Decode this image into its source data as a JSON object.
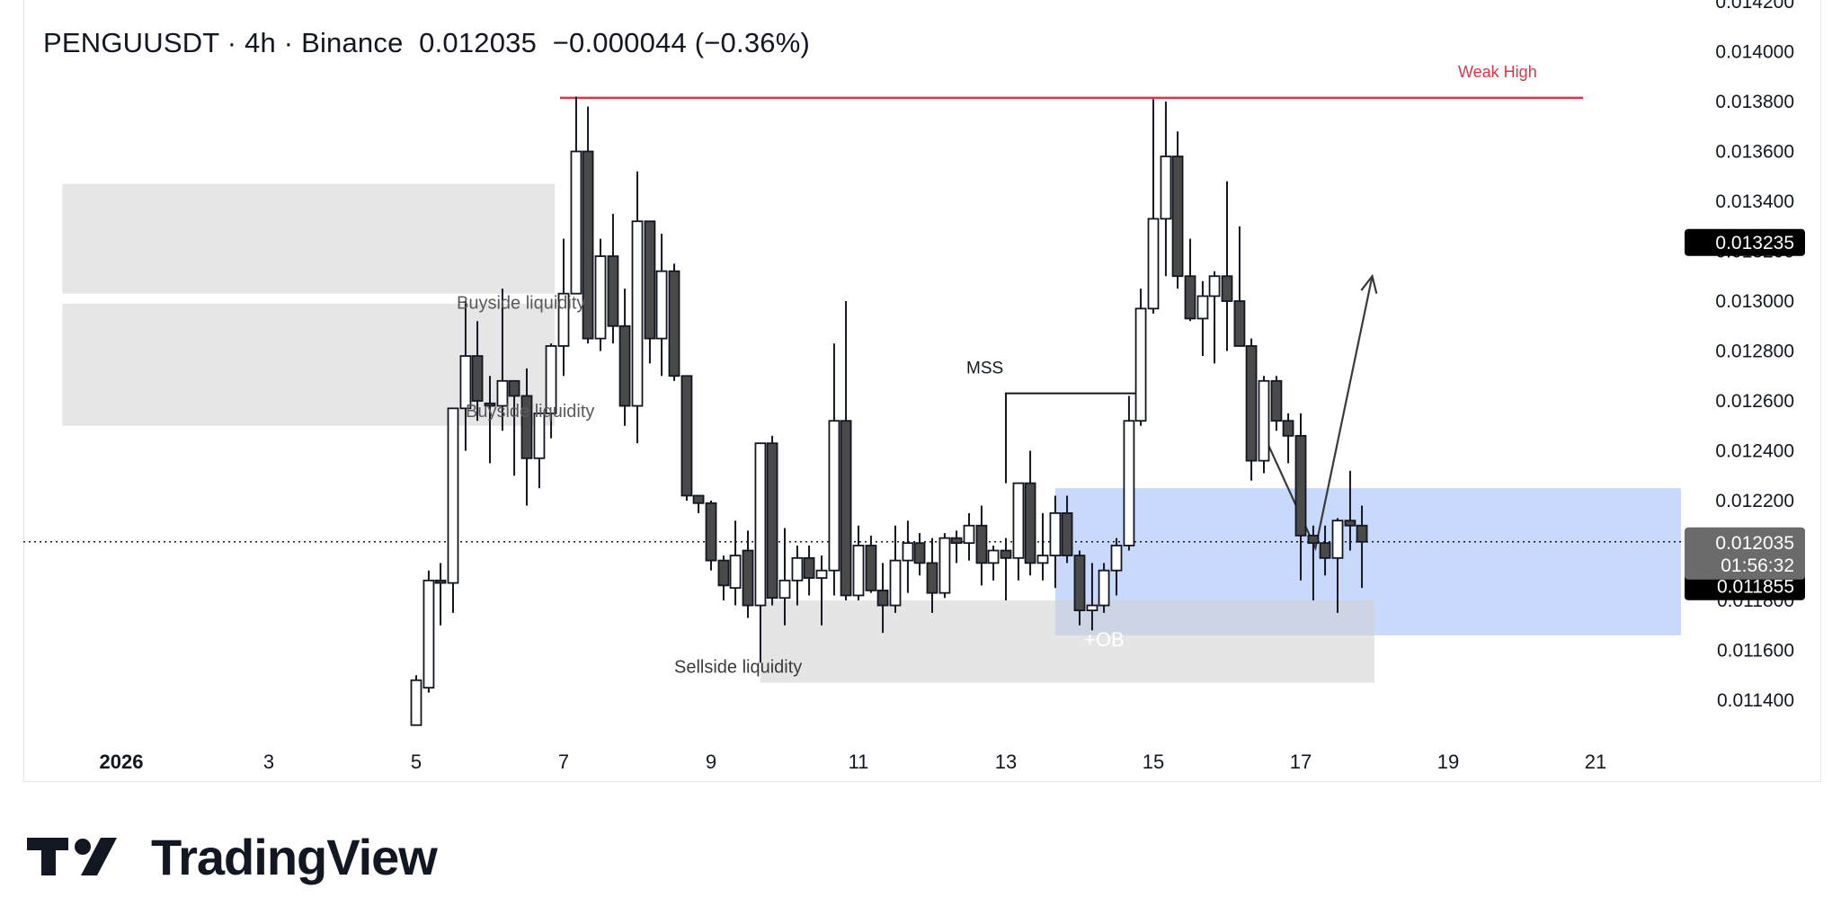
{
  "header": {
    "symbol": "PENGUUSDT",
    "interval": "4h",
    "exchange": "Binance",
    "price": "0.012035",
    "change": "−0.000044",
    "change_pct": "(−0.36%)"
  },
  "branding": {
    "name": "TradingView",
    "logo_icon": "tradingview-logo-icon"
  },
  "chart_data": {
    "type": "candlestick",
    "symbol": "PENGUUSDT",
    "timeframe": "4h",
    "price_axis": {
      "ticks": [
        "0.014200",
        "0.014000",
        "0.013800",
        "0.013600",
        "0.013400",
        "0.013200",
        "0.013000",
        "0.012800",
        "0.012600",
        "0.012400",
        "0.012200",
        "0.012000",
        "0.011800",
        "0.011600",
        "0.011400"
      ],
      "range": [
        0.0113,
        0.01425
      ]
    },
    "time_axis": {
      "labels": [
        {
          "t": 0,
          "text": "2026",
          "bold": true
        },
        {
          "t": 2,
          "text": "3"
        },
        {
          "t": 4,
          "text": "5"
        },
        {
          "t": 6,
          "text": "7"
        },
        {
          "t": 8,
          "text": "9"
        },
        {
          "t": 10,
          "text": "11"
        },
        {
          "t": 12,
          "text": "13"
        },
        {
          "t": 14,
          "text": "15"
        },
        {
          "t": 16,
          "text": "17"
        },
        {
          "t": 18,
          "text": "19"
        },
        {
          "t": 20,
          "text": "21"
        }
      ]
    },
    "price_labels": [
      {
        "price": 0.013235,
        "text": "0.013235",
        "style": "black"
      },
      {
        "price": 0.012035,
        "text": "0.012035",
        "style": "green"
      },
      {
        "price": 0.011855,
        "text": "0.011855",
        "style": "black"
      }
    ],
    "countdown_label": {
      "price": "0.012035",
      "time": "01:56:32"
    },
    "current_price": 0.012035,
    "candles": [
      {
        "t": 4.0,
        "o": 0.0113,
        "h": 0.0115,
        "l": 0.0113,
        "c": 0.01148
      },
      {
        "t": 4.17,
        "o": 0.01145,
        "h": 0.01192,
        "l": 0.01143,
        "c": 0.01188
      },
      {
        "t": 4.33,
        "o": 0.01188,
        "h": 0.01195,
        "l": 0.0117,
        "c": 0.01187
      },
      {
        "t": 4.5,
        "o": 0.01187,
        "h": 0.01257,
        "l": 0.01175,
        "c": 0.01257
      },
      {
        "t": 4.67,
        "o": 0.01257,
        "h": 0.013,
        "l": 0.0124,
        "c": 0.01278
      },
      {
        "t": 4.83,
        "o": 0.01278,
        "h": 0.01292,
        "l": 0.01252,
        "c": 0.0126
      },
      {
        "t": 5.0,
        "o": 0.01259,
        "h": 0.0127,
        "l": 0.01235,
        "c": 0.01258
      },
      {
        "t": 5.17,
        "o": 0.01258,
        "h": 0.01305,
        "l": 0.01248,
        "c": 0.01268
      },
      {
        "t": 5.33,
        "o": 0.01268,
        "h": 0.01268,
        "l": 0.0123,
        "c": 0.01262
      },
      {
        "t": 5.5,
        "o": 0.01262,
        "h": 0.01273,
        "l": 0.01218,
        "c": 0.01237
      },
      {
        "t": 5.67,
        "o": 0.01237,
        "h": 0.01254,
        "l": 0.01225,
        "c": 0.01255
      },
      {
        "t": 5.83,
        "o": 0.01255,
        "h": 0.01283,
        "l": 0.01245,
        "c": 0.01282
      },
      {
        "t": 6.0,
        "o": 0.01282,
        "h": 0.01325,
        "l": 0.0127,
        "c": 0.01303
      },
      {
        "t": 6.17,
        "o": 0.01303,
        "h": 0.01382,
        "l": 0.01303,
        "c": 0.0136
      },
      {
        "t": 6.33,
        "o": 0.0136,
        "h": 0.01378,
        "l": 0.01283,
        "c": 0.01285
      },
      {
        "t": 6.5,
        "o": 0.01285,
        "h": 0.01325,
        "l": 0.0128,
        "c": 0.01318
      },
      {
        "t": 6.67,
        "o": 0.01318,
        "h": 0.01335,
        "l": 0.01283,
        "c": 0.0129
      },
      {
        "t": 6.83,
        "o": 0.0129,
        "h": 0.01305,
        "l": 0.0125,
        "c": 0.01258
      },
      {
        "t": 7.0,
        "o": 0.01258,
        "h": 0.01352,
        "l": 0.01243,
        "c": 0.01332
      },
      {
        "t": 7.17,
        "o": 0.01332,
        "h": 0.01332,
        "l": 0.01275,
        "c": 0.01285
      },
      {
        "t": 7.33,
        "o": 0.01285,
        "h": 0.01327,
        "l": 0.0127,
        "c": 0.01312
      },
      {
        "t": 7.5,
        "o": 0.01312,
        "h": 0.01315,
        "l": 0.01268,
        "c": 0.0127
      },
      {
        "t": 7.67,
        "o": 0.0127,
        "h": 0.0127,
        "l": 0.0122,
        "c": 0.01222
      },
      {
        "t": 7.83,
        "o": 0.01222,
        "h": 0.01222,
        "l": 0.01215,
        "c": 0.01219
      },
      {
        "t": 8.0,
        "o": 0.01219,
        "h": 0.0122,
        "l": 0.01192,
        "c": 0.01196
      },
      {
        "t": 8.17,
        "o": 0.01196,
        "h": 0.01198,
        "l": 0.0118,
        "c": 0.01186
      },
      {
        "t": 8.33,
        "o": 0.01185,
        "h": 0.01212,
        "l": 0.01178,
        "c": 0.01198
      },
      {
        "t": 8.5,
        "o": 0.012,
        "h": 0.01208,
        "l": 0.01173,
        "c": 0.01178
      },
      {
        "t": 8.67,
        "o": 0.01178,
        "h": 0.01243,
        "l": 0.01155,
        "c": 0.01243
      },
      {
        "t": 8.83,
        "o": 0.01243,
        "h": 0.01246,
        "l": 0.01178,
        "c": 0.01181
      },
      {
        "t": 9.0,
        "o": 0.01181,
        "h": 0.01209,
        "l": 0.0117,
        "c": 0.01188
      },
      {
        "t": 9.17,
        "o": 0.01188,
        "h": 0.01202,
        "l": 0.01178,
        "c": 0.01197
      },
      {
        "t": 9.33,
        "o": 0.01197,
        "h": 0.01202,
        "l": 0.01182,
        "c": 0.01189
      },
      {
        "t": 9.5,
        "o": 0.01189,
        "h": 0.01198,
        "l": 0.0117,
        "c": 0.01192
      },
      {
        "t": 9.67,
        "o": 0.01192,
        "h": 0.01283,
        "l": 0.01182,
        "c": 0.01252
      },
      {
        "t": 9.83,
        "o": 0.01252,
        "h": 0.013,
        "l": 0.0118,
        "c": 0.01182
      },
      {
        "t": 10.0,
        "o": 0.01182,
        "h": 0.0121,
        "l": 0.0118,
        "c": 0.01202
      },
      {
        "t": 10.17,
        "o": 0.01202,
        "h": 0.01206,
        "l": 0.01183,
        "c": 0.01184
      },
      {
        "t": 10.33,
        "o": 0.01184,
        "h": 0.01195,
        "l": 0.01167,
        "c": 0.01178
      },
      {
        "t": 10.5,
        "o": 0.01178,
        "h": 0.0121,
        "l": 0.01175,
        "c": 0.01196
      },
      {
        "t": 10.67,
        "o": 0.01196,
        "h": 0.01212,
        "l": 0.01183,
        "c": 0.01203
      },
      {
        "t": 10.83,
        "o": 0.01203,
        "h": 0.01207,
        "l": 0.0119,
        "c": 0.01195
      },
      {
        "t": 11.0,
        "o": 0.01195,
        "h": 0.01205,
        "l": 0.01175,
        "c": 0.01183
      },
      {
        "t": 11.17,
        "o": 0.01183,
        "h": 0.01207,
        "l": 0.01181,
        "c": 0.01205
      },
      {
        "t": 11.33,
        "o": 0.01205,
        "h": 0.01208,
        "l": 0.01195,
        "c": 0.01203
      },
      {
        "t": 11.5,
        "o": 0.01203,
        "h": 0.01215,
        "l": 0.01196,
        "c": 0.0121
      },
      {
        "t": 11.67,
        "o": 0.0121,
        "h": 0.01218,
        "l": 0.01186,
        "c": 0.01195
      },
      {
        "t": 11.83,
        "o": 0.01195,
        "h": 0.01202,
        "l": 0.01188,
        "c": 0.012
      },
      {
        "t": 12.0,
        "o": 0.012,
        "h": 0.01205,
        "l": 0.0118,
        "c": 0.01197
      },
      {
        "t": 12.17,
        "o": 0.01197,
        "h": 0.01227,
        "l": 0.01188,
        "c": 0.01227
      },
      {
        "t": 12.33,
        "o": 0.01227,
        "h": 0.0124,
        "l": 0.0119,
        "c": 0.01195
      },
      {
        "t": 12.5,
        "o": 0.01195,
        "h": 0.01215,
        "l": 0.01188,
        "c": 0.01198
      },
      {
        "t": 12.67,
        "o": 0.01198,
        "h": 0.01222,
        "l": 0.01185,
        "c": 0.01215
      },
      {
        "t": 12.83,
        "o": 0.01215,
        "h": 0.01222,
        "l": 0.01195,
        "c": 0.01198
      },
      {
        "t": 13.0,
        "o": 0.01198,
        "h": 0.012,
        "l": 0.0117,
        "c": 0.01176
      },
      {
        "t": 13.17,
        "o": 0.01176,
        "h": 0.01195,
        "l": 0.01168,
        "c": 0.01178
      },
      {
        "t": 13.33,
        "o": 0.01178,
        "h": 0.01195,
        "l": 0.01175,
        "c": 0.01192
      },
      {
        "t": 13.5,
        "o": 0.01192,
        "h": 0.01205,
        "l": 0.01182,
        "c": 0.01202
      },
      {
        "t": 13.67,
        "o": 0.01202,
        "h": 0.01262,
        "l": 0.012,
        "c": 0.01252
      },
      {
        "t": 13.83,
        "o": 0.01252,
        "h": 0.01305,
        "l": 0.0125,
        "c": 0.01297
      },
      {
        "t": 14.0,
        "o": 0.01297,
        "h": 0.01381,
        "l": 0.01295,
        "c": 0.01333
      },
      {
        "t": 14.17,
        "o": 0.01333,
        "h": 0.0138,
        "l": 0.0131,
        "c": 0.01358
      },
      {
        "t": 14.33,
        "o": 0.01358,
        "h": 0.01368,
        "l": 0.01305,
        "c": 0.0131
      },
      {
        "t": 14.5,
        "o": 0.0131,
        "h": 0.01325,
        "l": 0.01292,
        "c": 0.01293
      },
      {
        "t": 14.67,
        "o": 0.01293,
        "h": 0.01308,
        "l": 0.01278,
        "c": 0.01302
      },
      {
        "t": 14.83,
        "o": 0.01302,
        "h": 0.01312,
        "l": 0.01275,
        "c": 0.0131
      },
      {
        "t": 15.0,
        "o": 0.0131,
        "h": 0.01348,
        "l": 0.0128,
        "c": 0.013
      },
      {
        "t": 15.17,
        "o": 0.013,
        "h": 0.0133,
        "l": 0.01282,
        "c": 0.01282
      },
      {
        "t": 15.33,
        "o": 0.01282,
        "h": 0.01285,
        "l": 0.01228,
        "c": 0.01236
      },
      {
        "t": 15.5,
        "o": 0.01236,
        "h": 0.0127,
        "l": 0.01231,
        "c": 0.01268
      },
      {
        "t": 15.67,
        "o": 0.01268,
        "h": 0.0127,
        "l": 0.01248,
        "c": 0.01252
      },
      {
        "t": 15.83,
        "o": 0.01252,
        "h": 0.01255,
        "l": 0.01235,
        "c": 0.01246
      },
      {
        "t": 16.0,
        "o": 0.01246,
        "h": 0.01255,
        "l": 0.01188,
        "c": 0.01206
      },
      {
        "t": 16.17,
        "o": 0.01206,
        "h": 0.0121,
        "l": 0.0118,
        "c": 0.01203
      },
      {
        "t": 16.33,
        "o": 0.01203,
        "h": 0.0121,
        "l": 0.0119,
        "c": 0.01197
      },
      {
        "t": 16.5,
        "o": 0.01197,
        "h": 0.01213,
        "l": 0.01175,
        "c": 0.01212
      },
      {
        "t": 16.67,
        "o": 0.01212,
        "h": 0.01232,
        "l": 0.012,
        "c": 0.0121
      },
      {
        "t": 16.83,
        "o": 0.0121,
        "h": 0.01218,
        "l": 0.01185,
        "c": 0.012035
      }
    ],
    "annotations": {
      "weak_high": {
        "label": "Weak High",
        "price": 0.013815,
        "t_start": 6.0,
        "t_end": 20.0,
        "color": "#e0324a"
      },
      "mss": {
        "label": "MSS",
        "price": 0.01263,
        "t_start": 12.0,
        "t_end": 13.8
      },
      "buyside_upper": {
        "label": "Buyside liquidity",
        "top": 0.01347,
        "bottom": 0.01303,
        "t_start": -0.8,
        "t_end": 5.88
      },
      "buyside_lower": {
        "label": "Buyside liquidity",
        "top": 0.01299,
        "bottom": 0.0125,
        "t_start": -0.8,
        "t_end": 5.88
      },
      "sellside": {
        "label": "Sellside liquidity",
        "top": 0.0118,
        "bottom": 0.01147,
        "t_start": 8.67,
        "t_end": 17.0
      },
      "order_block": {
        "label": "+OB",
        "top": 0.01225,
        "bottom": 0.01166,
        "t_start": 12.67,
        "t_end": 22.9,
        "color": "#c9d9fb"
      },
      "projection": {
        "points": [
          [
            15.55,
            0.01243
          ],
          [
            16.2,
            0.01201
          ],
          [
            16.97,
            0.0131
          ]
        ]
      }
    },
    "colors": {
      "up_fill": "#ffffff",
      "down_fill": "#4a4a4a",
      "outline": "#131722",
      "weak_high": "#e0324a",
      "green_label": "#22ab94",
      "ob_fill": "#c9d9fb"
    }
  }
}
